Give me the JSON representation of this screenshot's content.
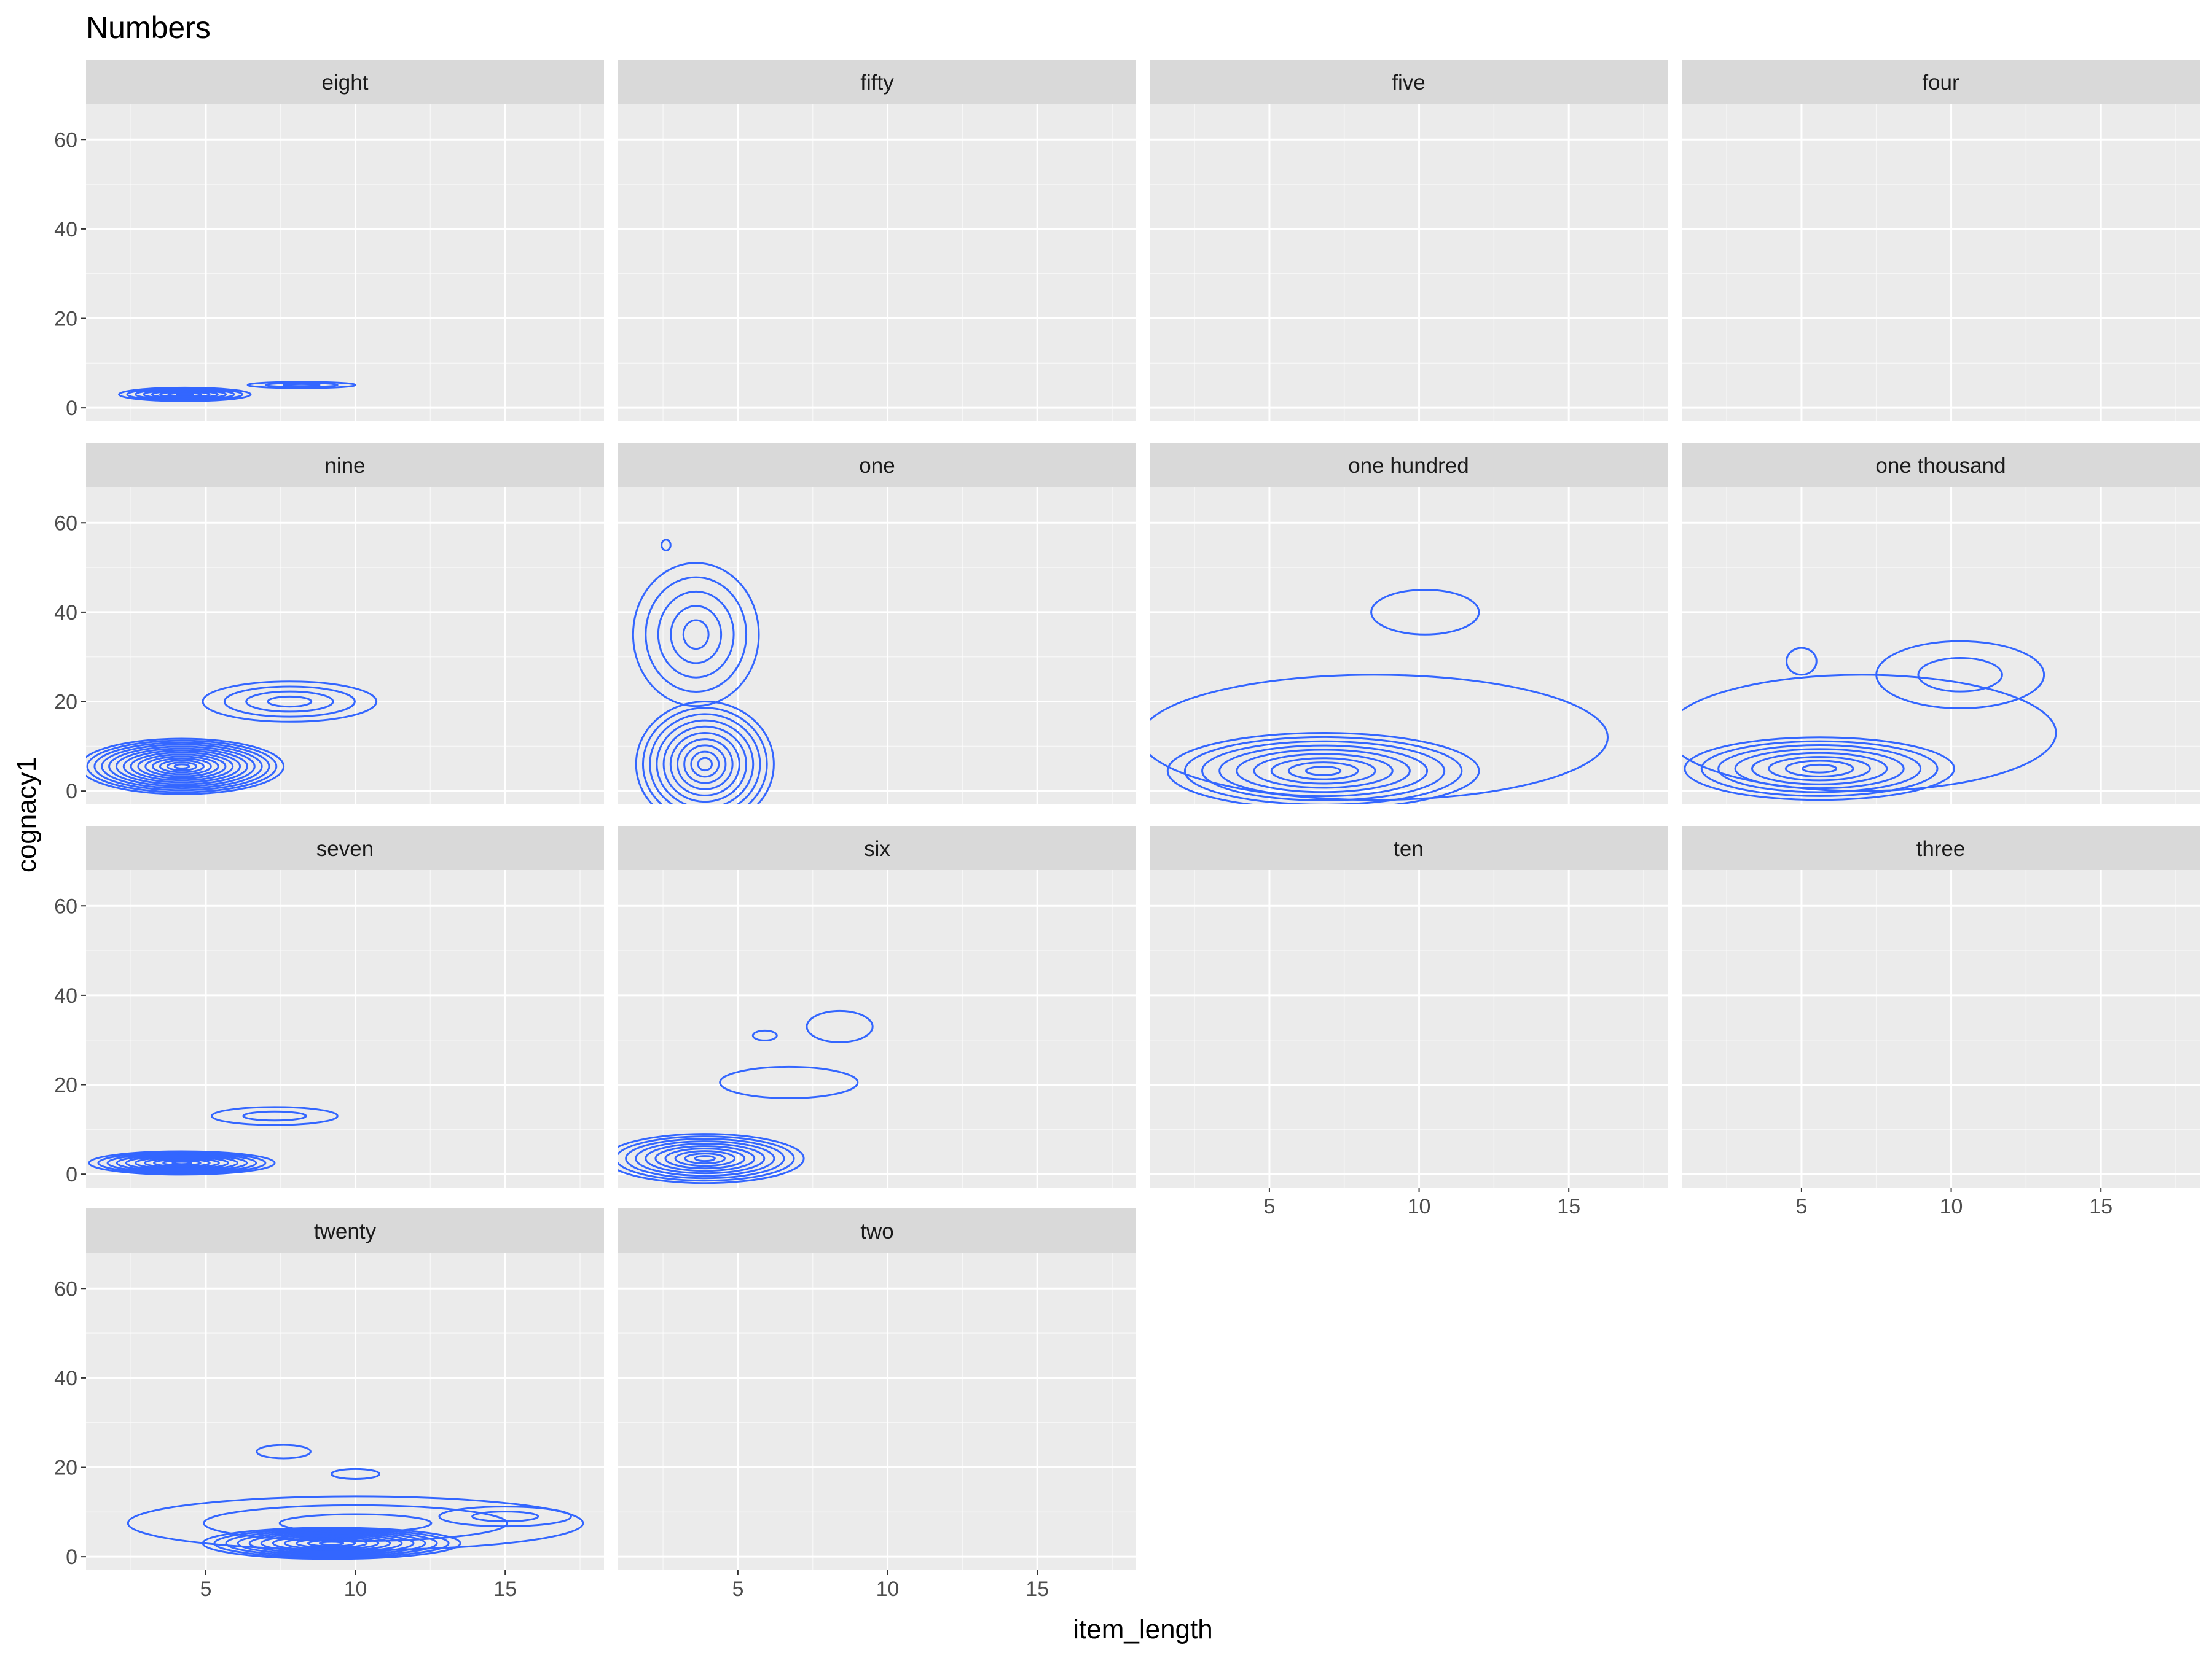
{
  "chart_data": {
    "type": "contour",
    "title": "Numbers",
    "xlabel": "item_length",
    "ylabel": "cognacy1",
    "xlim": [
      1,
      18.3
    ],
    "ylim": [
      -3,
      68
    ],
    "x_ticks": [
      5,
      10,
      15
    ],
    "y_ticks": [
      0,
      20,
      40,
      60
    ],
    "grid": true,
    "legend": "none",
    "facet_layout": {
      "ncol": 4,
      "nrow": 4
    },
    "colors": {
      "contour": "#3366FF",
      "panel_bg": "#EBEBEB",
      "grid_major": "#FFFFFF",
      "strip_bg": "#D9D9D9",
      "axis_text": "#4D4D4D",
      "strip_text": "#1A1A1A",
      "title_text": "#000000"
    },
    "panels": [
      {
        "label": "eight",
        "contours": [
          {
            "kind": "ellipse",
            "cx": 4.3,
            "cy": 3,
            "rx": 2.2,
            "ry": 1.5,
            "levels": 8
          },
          {
            "kind": "ellipse",
            "cx": 8.2,
            "cy": 5.1,
            "rx": 1.8,
            "ry": 0.7,
            "levels": 3
          }
        ]
      },
      {
        "label": "fifty",
        "contours": []
      },
      {
        "label": "five",
        "contours": []
      },
      {
        "label": "four",
        "contours": []
      },
      {
        "label": "nine",
        "contours": [
          {
            "kind": "ellipse",
            "cx": 4.2,
            "cy": 5.5,
            "rx": 3.4,
            "ry": 6.2,
            "levels": 14
          },
          {
            "kind": "ellipse",
            "cx": 7.8,
            "cy": 20,
            "rx": 2.9,
            "ry": 4.5,
            "levels": 4
          }
        ]
      },
      {
        "label": "one",
        "contours": [
          {
            "kind": "ellipse",
            "cx": 3.9,
            "cy": 6,
            "rx": 2.3,
            "ry": 14,
            "levels": 10
          },
          {
            "kind": "ellipse",
            "cx": 3.6,
            "cy": 35,
            "rx": 2.1,
            "ry": 16,
            "levels": 5
          },
          {
            "kind": "ellipse",
            "cx": 2.6,
            "cy": 55,
            "rx": 0.15,
            "ry": 1.2,
            "levels": 1
          }
        ]
      },
      {
        "label": "one hundred",
        "contours": [
          {
            "kind": "ellipse",
            "cx": 6.8,
            "cy": 4.5,
            "rx": 5.2,
            "ry": 8.5,
            "levels": 9
          },
          {
            "kind": "ellipse",
            "cx": 8.5,
            "cy": 12,
            "rx": 7.8,
            "ry": 14,
            "levels": 1
          },
          {
            "kind": "ellipse",
            "cx": 10.2,
            "cy": 40,
            "rx": 1.8,
            "ry": 5,
            "levels": 1
          }
        ]
      },
      {
        "label": "one thousand",
        "contours": [
          {
            "kind": "ellipse",
            "cx": 5.6,
            "cy": 5,
            "rx": 4.5,
            "ry": 7,
            "levels": 8
          },
          {
            "kind": "ellipse",
            "cx": 7,
            "cy": 13,
            "rx": 6.5,
            "ry": 13,
            "levels": 1
          },
          {
            "kind": "ellipse",
            "cx": 10.3,
            "cy": 26,
            "rx": 2.8,
            "ry": 7.5,
            "levels": 2
          },
          {
            "kind": "ellipse",
            "cx": 5,
            "cy": 29,
            "rx": 0.5,
            "ry": 3,
            "levels": 1
          }
        ]
      },
      {
        "label": "seven",
        "contours": [
          {
            "kind": "ellipse",
            "cx": 4.2,
            "cy": 2.5,
            "rx": 3.1,
            "ry": 2.6,
            "levels": 10
          },
          {
            "kind": "ellipse",
            "cx": 7.3,
            "cy": 13,
            "rx": 2.1,
            "ry": 2,
            "levels": 2
          }
        ]
      },
      {
        "label": "six",
        "contours": [
          {
            "kind": "ellipse",
            "cx": 3.9,
            "cy": 3.5,
            "rx": 3.3,
            "ry": 5.5,
            "levels": 10
          },
          {
            "kind": "ellipse",
            "cx": 6.7,
            "cy": 20.5,
            "rx": 2.3,
            "ry": 3.5,
            "levels": 1
          },
          {
            "kind": "ellipse",
            "cx": 8.4,
            "cy": 33,
            "rx": 1.1,
            "ry": 3.5,
            "levels": 1
          },
          {
            "kind": "ellipse",
            "cx": 5.9,
            "cy": 31,
            "rx": 0.4,
            "ry": 1.1,
            "levels": 1
          }
        ]
      },
      {
        "label": "ten",
        "contours": []
      },
      {
        "label": "three",
        "contours": []
      },
      {
        "label": "twenty",
        "contours": [
          {
            "kind": "ellipse",
            "cx": 9.2,
            "cy": 3,
            "rx": 4.3,
            "ry": 3.5,
            "levels": 11
          },
          {
            "kind": "ellipse",
            "cx": 10,
            "cy": 7.5,
            "rx": 7.6,
            "ry": 6,
            "levels": 3
          },
          {
            "kind": "ellipse",
            "cx": 15,
            "cy": 9,
            "rx": 2.2,
            "ry": 2.2,
            "levels": 2
          },
          {
            "kind": "ellipse",
            "cx": 7.6,
            "cy": 23.5,
            "rx": 0.9,
            "ry": 1.5,
            "levels": 1
          },
          {
            "kind": "ellipse",
            "cx": 10,
            "cy": 18.5,
            "rx": 0.8,
            "ry": 1.1,
            "levels": 1
          }
        ]
      },
      {
        "label": "two",
        "contours": []
      }
    ]
  }
}
